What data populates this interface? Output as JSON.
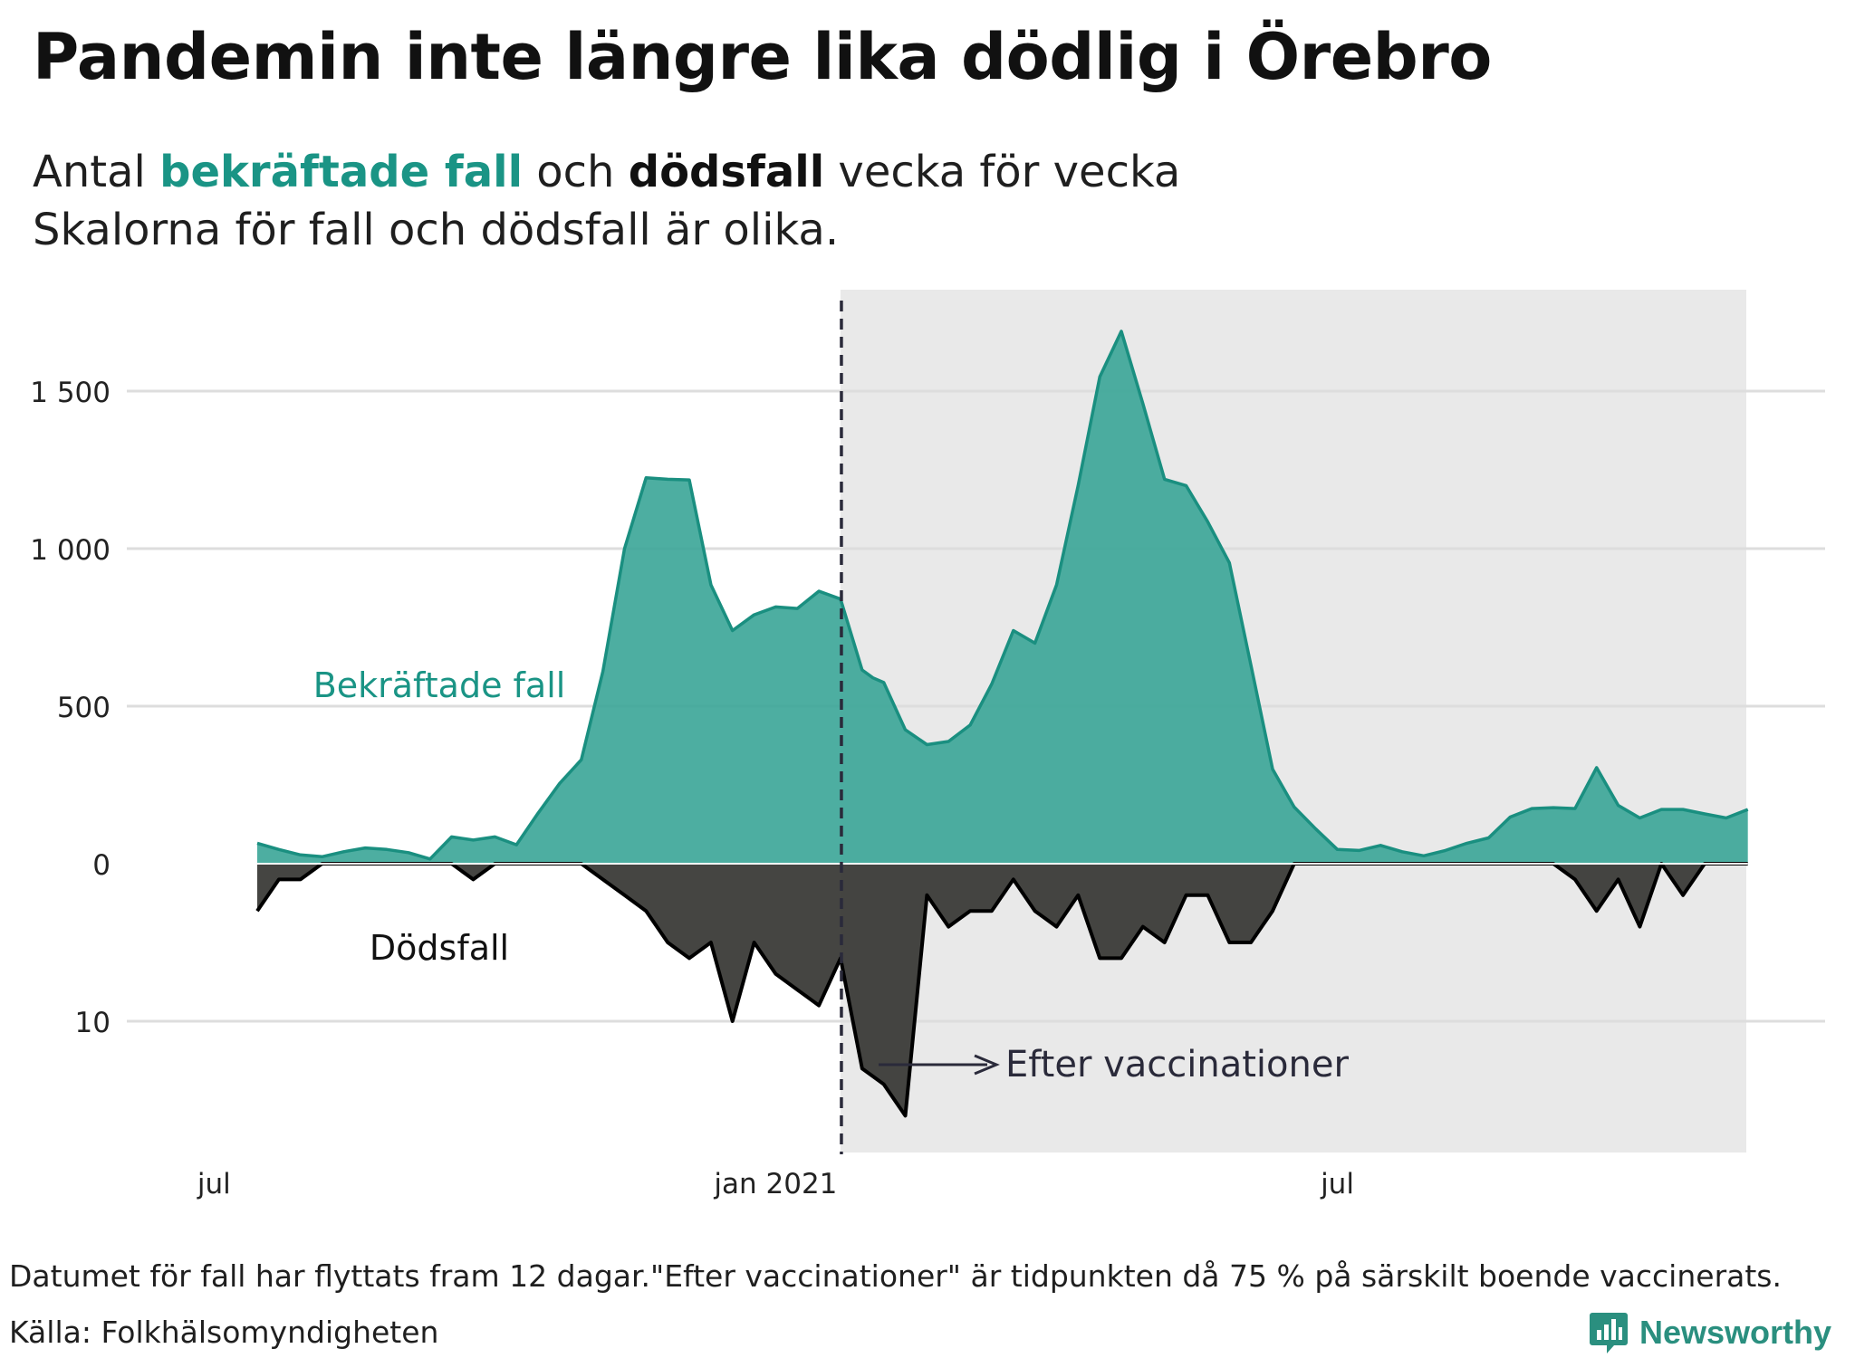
{
  "title": "Pandemin inte längre lika dödlig i Örebro",
  "subtitle": {
    "prefix": "Antal ",
    "cases_label": "bekräftade fall",
    "middle": " och ",
    "deaths_label": "dödsfall",
    "suffix": " vecka för vecka",
    "line2": "Skalorna för fall och dödsfall är olika."
  },
  "footnote": "Datumet för fall har flyttats fram 12 dagar.\"Efter vaccinationer\" är tidpunkten då 75 % på särskilt boende vaccinerats.",
  "source": "Källa: Folkhälsomyndigheten",
  "brand": "Newsworthy",
  "colors": {
    "cases_fill": "#3aa597",
    "cases_line": "#1a8f80",
    "deaths_fill": "#3b3b38",
    "deaths_line": "#000000",
    "shade": "#e9e9e9",
    "grid": "#dddddd",
    "annotation": "#2a2a3a"
  },
  "chart_data": {
    "type": "area",
    "title": "Antal bekräftade fall och dödsfall vecka för vecka",
    "x_tick_labels": [
      "jul",
      "jan 2021",
      "jul"
    ],
    "x_tick_weeks": [
      -1,
      25,
      51
    ],
    "y_tick_labels_cases": [
      "1 500",
      "1 000",
      "500",
      "0"
    ],
    "y_tick_values_cases": [
      1500,
      1000,
      500,
      0
    ],
    "y_tick_labels_deaths": [
      "10"
    ],
    "y_tick_values_deaths": [
      10
    ],
    "ylim_cases": [
      0,
      1700
    ],
    "ylim_deaths": [
      0,
      16
    ],
    "series_labels": {
      "cases": "Bekräftade fall",
      "deaths": "Dödsfall"
    },
    "vaccination_week": 28,
    "annotation": "Efter vaccinationer",
    "shaded_from_week": 28,
    "shaded_to_week": 68,
    "cases": [
      {
        "w": 1,
        "v": 65
      },
      {
        "w": 2,
        "v": 45
      },
      {
        "w": 3,
        "v": 28
      },
      {
        "w": 4,
        "v": 22
      },
      {
        "w": 5,
        "v": 38
      },
      {
        "w": 6,
        "v": 50
      },
      {
        "w": 7,
        "v": 45
      },
      {
        "w": 8,
        "v": 35
      },
      {
        "w": 9,
        "v": 15
      },
      {
        "w": 10,
        "v": 85
      },
      {
        "w": 11,
        "v": 75
      },
      {
        "w": 12,
        "v": 85
      },
      {
        "w": 13,
        "v": 60
      },
      {
        "w": 14,
        "v": 160
      },
      {
        "w": 15,
        "v": 255
      },
      {
        "w": 16,
        "v": 330
      },
      {
        "w": 17,
        "v": 610
      },
      {
        "w": 18,
        "v": 1000
      },
      {
        "w": 19,
        "v": 1225
      },
      {
        "w": 20,
        "v": 1220
      },
      {
        "w": 21,
        "v": 1218
      },
      {
        "w": 22,
        "v": 885
      },
      {
        "w": 23,
        "v": 740
      },
      {
        "w": 24,
        "v": 790
      },
      {
        "w": 25,
        "v": 815
      },
      {
        "w": 26,
        "v": 810
      },
      {
        "w": 27,
        "v": 865
      },
      {
        "w": 28,
        "v": 840
      },
      {
        "w": 29,
        "v": 615
      },
      {
        "w": 29.5,
        "v": 590
      },
      {
        "w": 30,
        "v": 575
      },
      {
        "w": 31,
        "v": 425
      },
      {
        "w": 32,
        "v": 378
      },
      {
        "w": 33,
        "v": 388
      },
      {
        "w": 34,
        "v": 440
      },
      {
        "w": 35,
        "v": 570
      },
      {
        "w": 36,
        "v": 740
      },
      {
        "w": 37,
        "v": 700
      },
      {
        "w": 38,
        "v": 885
      },
      {
        "w": 39,
        "v": 1200
      },
      {
        "w": 40,
        "v": 1545
      },
      {
        "w": 41,
        "v": 1690
      },
      {
        "w": 42,
        "v": 1460
      },
      {
        "w": 43,
        "v": 1220
      },
      {
        "w": 44,
        "v": 1200
      },
      {
        "w": 45,
        "v": 1085
      },
      {
        "w": 46,
        "v": 955
      },
      {
        "w": 47,
        "v": 630
      },
      {
        "w": 48,
        "v": 300
      },
      {
        "w": 49,
        "v": 180
      },
      {
        "w": 50,
        "v": 110
      },
      {
        "w": 51,
        "v": 45
      },
      {
        "w": 52,
        "v": 42
      },
      {
        "w": 53,
        "v": 58
      },
      {
        "w": 54,
        "v": 38
      },
      {
        "w": 55,
        "v": 25
      },
      {
        "w": 56,
        "v": 42
      },
      {
        "w": 57,
        "v": 65
      },
      {
        "w": 58,
        "v": 82
      },
      {
        "w": 59,
        "v": 148
      },
      {
        "w": 60,
        "v": 175
      },
      {
        "w": 61,
        "v": 178
      },
      {
        "w": 62,
        "v": 175
      },
      {
        "w": 63,
        "v": 305
      },
      {
        "w": 64,
        "v": 185
      },
      {
        "w": 65,
        "v": 145
      },
      {
        "w": 66,
        "v": 172
      },
      {
        "w": 67,
        "v": 172
      },
      {
        "w": 68,
        "v": 158
      },
      {
        "w": 69,
        "v": 145
      },
      {
        "w": 70,
        "v": 172
      }
    ],
    "deaths": [
      {
        "w": 1,
        "v": 3
      },
      {
        "w": 2,
        "v": 1
      },
      {
        "w": 3,
        "v": 1
      },
      {
        "w": 4,
        "v": 0
      },
      {
        "w": 5,
        "v": 0
      },
      {
        "w": 6,
        "v": 0
      },
      {
        "w": 7,
        "v": 0
      },
      {
        "w": 8,
        "v": 0
      },
      {
        "w": 9,
        "v": 0
      },
      {
        "w": 10,
        "v": 0
      },
      {
        "w": 11,
        "v": 1
      },
      {
        "w": 12,
        "v": 0
      },
      {
        "w": 13,
        "v": 0
      },
      {
        "w": 14,
        "v": 0
      },
      {
        "w": 15,
        "v": 0
      },
      {
        "w": 16,
        "v": 0
      },
      {
        "w": 17,
        "v": 1
      },
      {
        "w": 18,
        "v": 2
      },
      {
        "w": 19,
        "v": 3
      },
      {
        "w": 20,
        "v": 5
      },
      {
        "w": 21,
        "v": 6
      },
      {
        "w": 22,
        "v": 5
      },
      {
        "w": 23,
        "v": 10
      },
      {
        "w": 24,
        "v": 5
      },
      {
        "w": 25,
        "v": 7
      },
      {
        "w": 26,
        "v": 8
      },
      {
        "w": 27,
        "v": 9
      },
      {
        "w": 28,
        "v": 6
      },
      {
        "w": 29,
        "v": 13
      },
      {
        "w": 29.5,
        "v": 13.5
      },
      {
        "w": 30,
        "v": 14
      },
      {
        "w": 31,
        "v": 16
      },
      {
        "w": 32,
        "v": 2
      },
      {
        "w": 33,
        "v": 4
      },
      {
        "w": 34,
        "v": 3
      },
      {
        "w": 35,
        "v": 3
      },
      {
        "w": 36,
        "v": 1
      },
      {
        "w": 37,
        "v": 3
      },
      {
        "w": 38,
        "v": 4
      },
      {
        "w": 39,
        "v": 2
      },
      {
        "w": 40,
        "v": 6
      },
      {
        "w": 41,
        "v": 6
      },
      {
        "w": 42,
        "v": 4
      },
      {
        "w": 43,
        "v": 5
      },
      {
        "w": 44,
        "v": 2
      },
      {
        "w": 45,
        "v": 2
      },
      {
        "w": 46,
        "v": 5
      },
      {
        "w": 47,
        "v": 5
      },
      {
        "w": 48,
        "v": 3
      },
      {
        "w": 49,
        "v": 0
      },
      {
        "w": 50,
        "v": 0
      },
      {
        "w": 51,
        "v": 0
      },
      {
        "w": 52,
        "v": 0
      },
      {
        "w": 53,
        "v": 0
      },
      {
        "w": 54,
        "v": 0
      },
      {
        "w": 55,
        "v": 0
      },
      {
        "w": 56,
        "v": 0
      },
      {
        "w": 57,
        "v": 0
      },
      {
        "w": 58,
        "v": 0
      },
      {
        "w": 59,
        "v": 0
      },
      {
        "w": 60,
        "v": 0
      },
      {
        "w": 61,
        "v": 0
      },
      {
        "w": 62,
        "v": 1
      },
      {
        "w": 63,
        "v": 3
      },
      {
        "w": 64,
        "v": 1
      },
      {
        "w": 65,
        "v": 4
      },
      {
        "w": 66,
        "v": 0
      },
      {
        "w": 67,
        "v": 2
      },
      {
        "w": 68,
        "v": 0
      },
      {
        "w": 69,
        "v": 0
      },
      {
        "w": 70,
        "v": 0
      }
    ]
  }
}
